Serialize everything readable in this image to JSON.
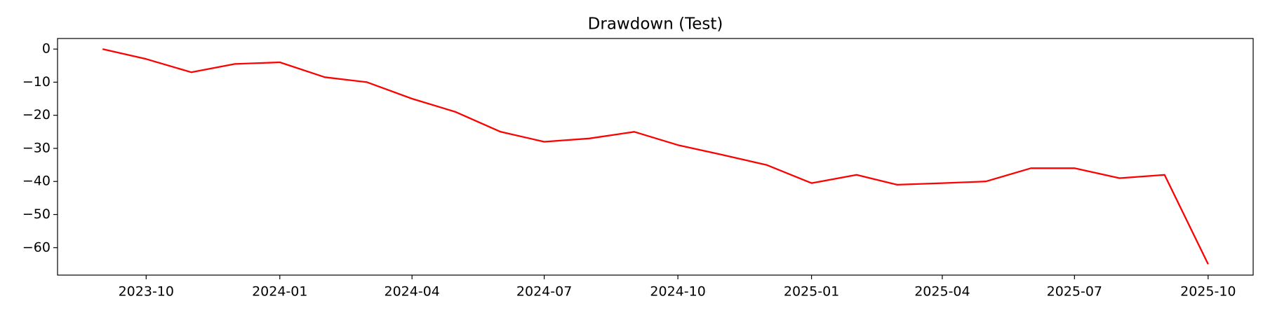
{
  "chart_data": {
    "type": "line",
    "title": "Drawdown (Test)",
    "x": [
      "2023-09",
      "2023-10",
      "2023-11",
      "2023-12",
      "2024-01",
      "2024-02",
      "2024-03",
      "2024-04",
      "2024-05",
      "2024-06",
      "2024-07",
      "2024-08",
      "2024-09",
      "2024-10",
      "2024-11",
      "2024-12",
      "2025-01",
      "2025-02",
      "2025-03",
      "2025-04",
      "2025-05",
      "2025-06",
      "2025-07",
      "2025-08",
      "2025-09",
      "2025-10"
    ],
    "values": [
      0,
      -3,
      -7,
      -4.5,
      -4,
      -8.5,
      -10,
      -15,
      -19,
      -25,
      -28,
      -27,
      -25,
      -29,
      -32,
      -35,
      -40.5,
      -38,
      -41,
      -40.5,
      -40,
      -36,
      -36,
      -39,
      -38,
      -65
    ],
    "color": "#ff0000",
    "xlim": [
      "2023-08",
      "2025-11"
    ],
    "xticks": [
      "2023-10",
      "2024-01",
      "2024-04",
      "2024-07",
      "2024-10",
      "2025-01",
      "2025-04",
      "2025-07",
      "2025-10"
    ],
    "ylim": [
      -68.3,
      3.2
    ],
    "yticks": [
      {
        "value": 0,
        "label": "0"
      },
      {
        "value": -10,
        "label": "−10"
      },
      {
        "value": -20,
        "label": "−20"
      },
      {
        "value": -30,
        "label": "−30"
      },
      {
        "value": -40,
        "label": "−40"
      },
      {
        "value": -50,
        "label": "−50"
      },
      {
        "value": -60,
        "label": "−60"
      }
    ]
  }
}
